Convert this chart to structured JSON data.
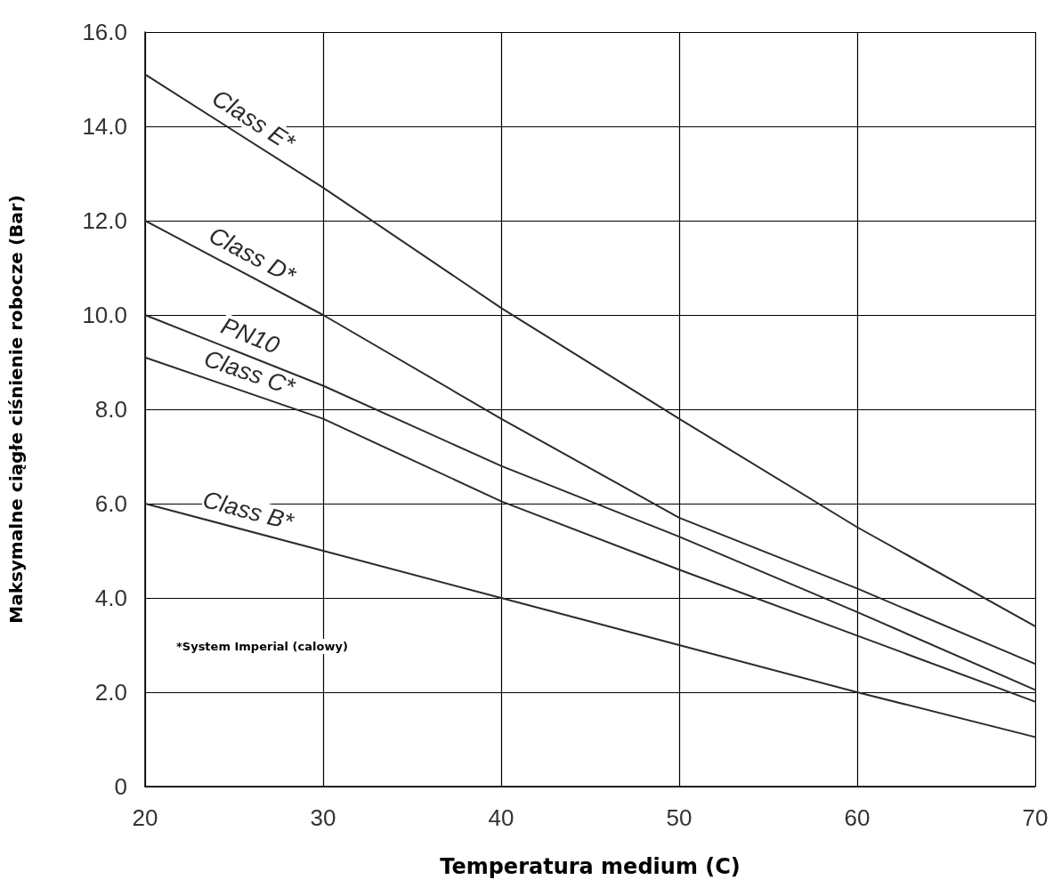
{
  "chart_data": {
    "type": "line",
    "xlabel": "Temperatura medium (C)",
    "ylabel": "Maksymalne ciągłe ciśnienie robocze (Bar)",
    "x": [
      20,
      30,
      40,
      50,
      60,
      70
    ],
    "series": [
      {
        "name": "Class E*",
        "color": "#2b2b2b",
        "values": [
          15.1,
          12.7,
          10.15,
          7.8,
          5.5,
          3.4
        ]
      },
      {
        "name": "Class D*",
        "color": "#2b2b2b",
        "values": [
          12.0,
          10.0,
          7.8,
          5.7,
          4.2,
          2.6
        ]
      },
      {
        "name": "PN10",
        "color": "#2b2b2b",
        "values": [
          10.0,
          8.5,
          6.8,
          5.3,
          3.7,
          2.05
        ]
      },
      {
        "name": "Class C*",
        "color": "#2b2b2b",
        "values": [
          9.1,
          7.8,
          6.05,
          4.6,
          3.2,
          1.8
        ]
      },
      {
        "name": "Class B*",
        "color": "#2b2b2b",
        "values": [
          6.0,
          5.0,
          4.0,
          3.0,
          2.0,
          1.05
        ]
      }
    ],
    "xlim": [
      20,
      70
    ],
    "xticks": [
      20,
      30,
      40,
      50,
      60,
      70
    ],
    "ylim": [
      0,
      16
    ],
    "yticks": [
      0,
      {
        "value": 2,
        "label": "2.0"
      },
      {
        "value": 4,
        "label": "4.0"
      },
      {
        "value": 6,
        "label": "6.0"
      },
      {
        "value": 8,
        "label": "8.0"
      },
      {
        "value": 10,
        "label": "10.0"
      },
      {
        "value": 12,
        "label": "12.0"
      },
      {
        "value": 14,
        "label": "14.0"
      },
      {
        "value": 16,
        "label": "16.0"
      }
    ],
    "annotations": [
      "*System Imperial (calowy)"
    ],
    "grid": true,
    "legend": false,
    "marker": "none",
    "line_style": "solid"
  }
}
